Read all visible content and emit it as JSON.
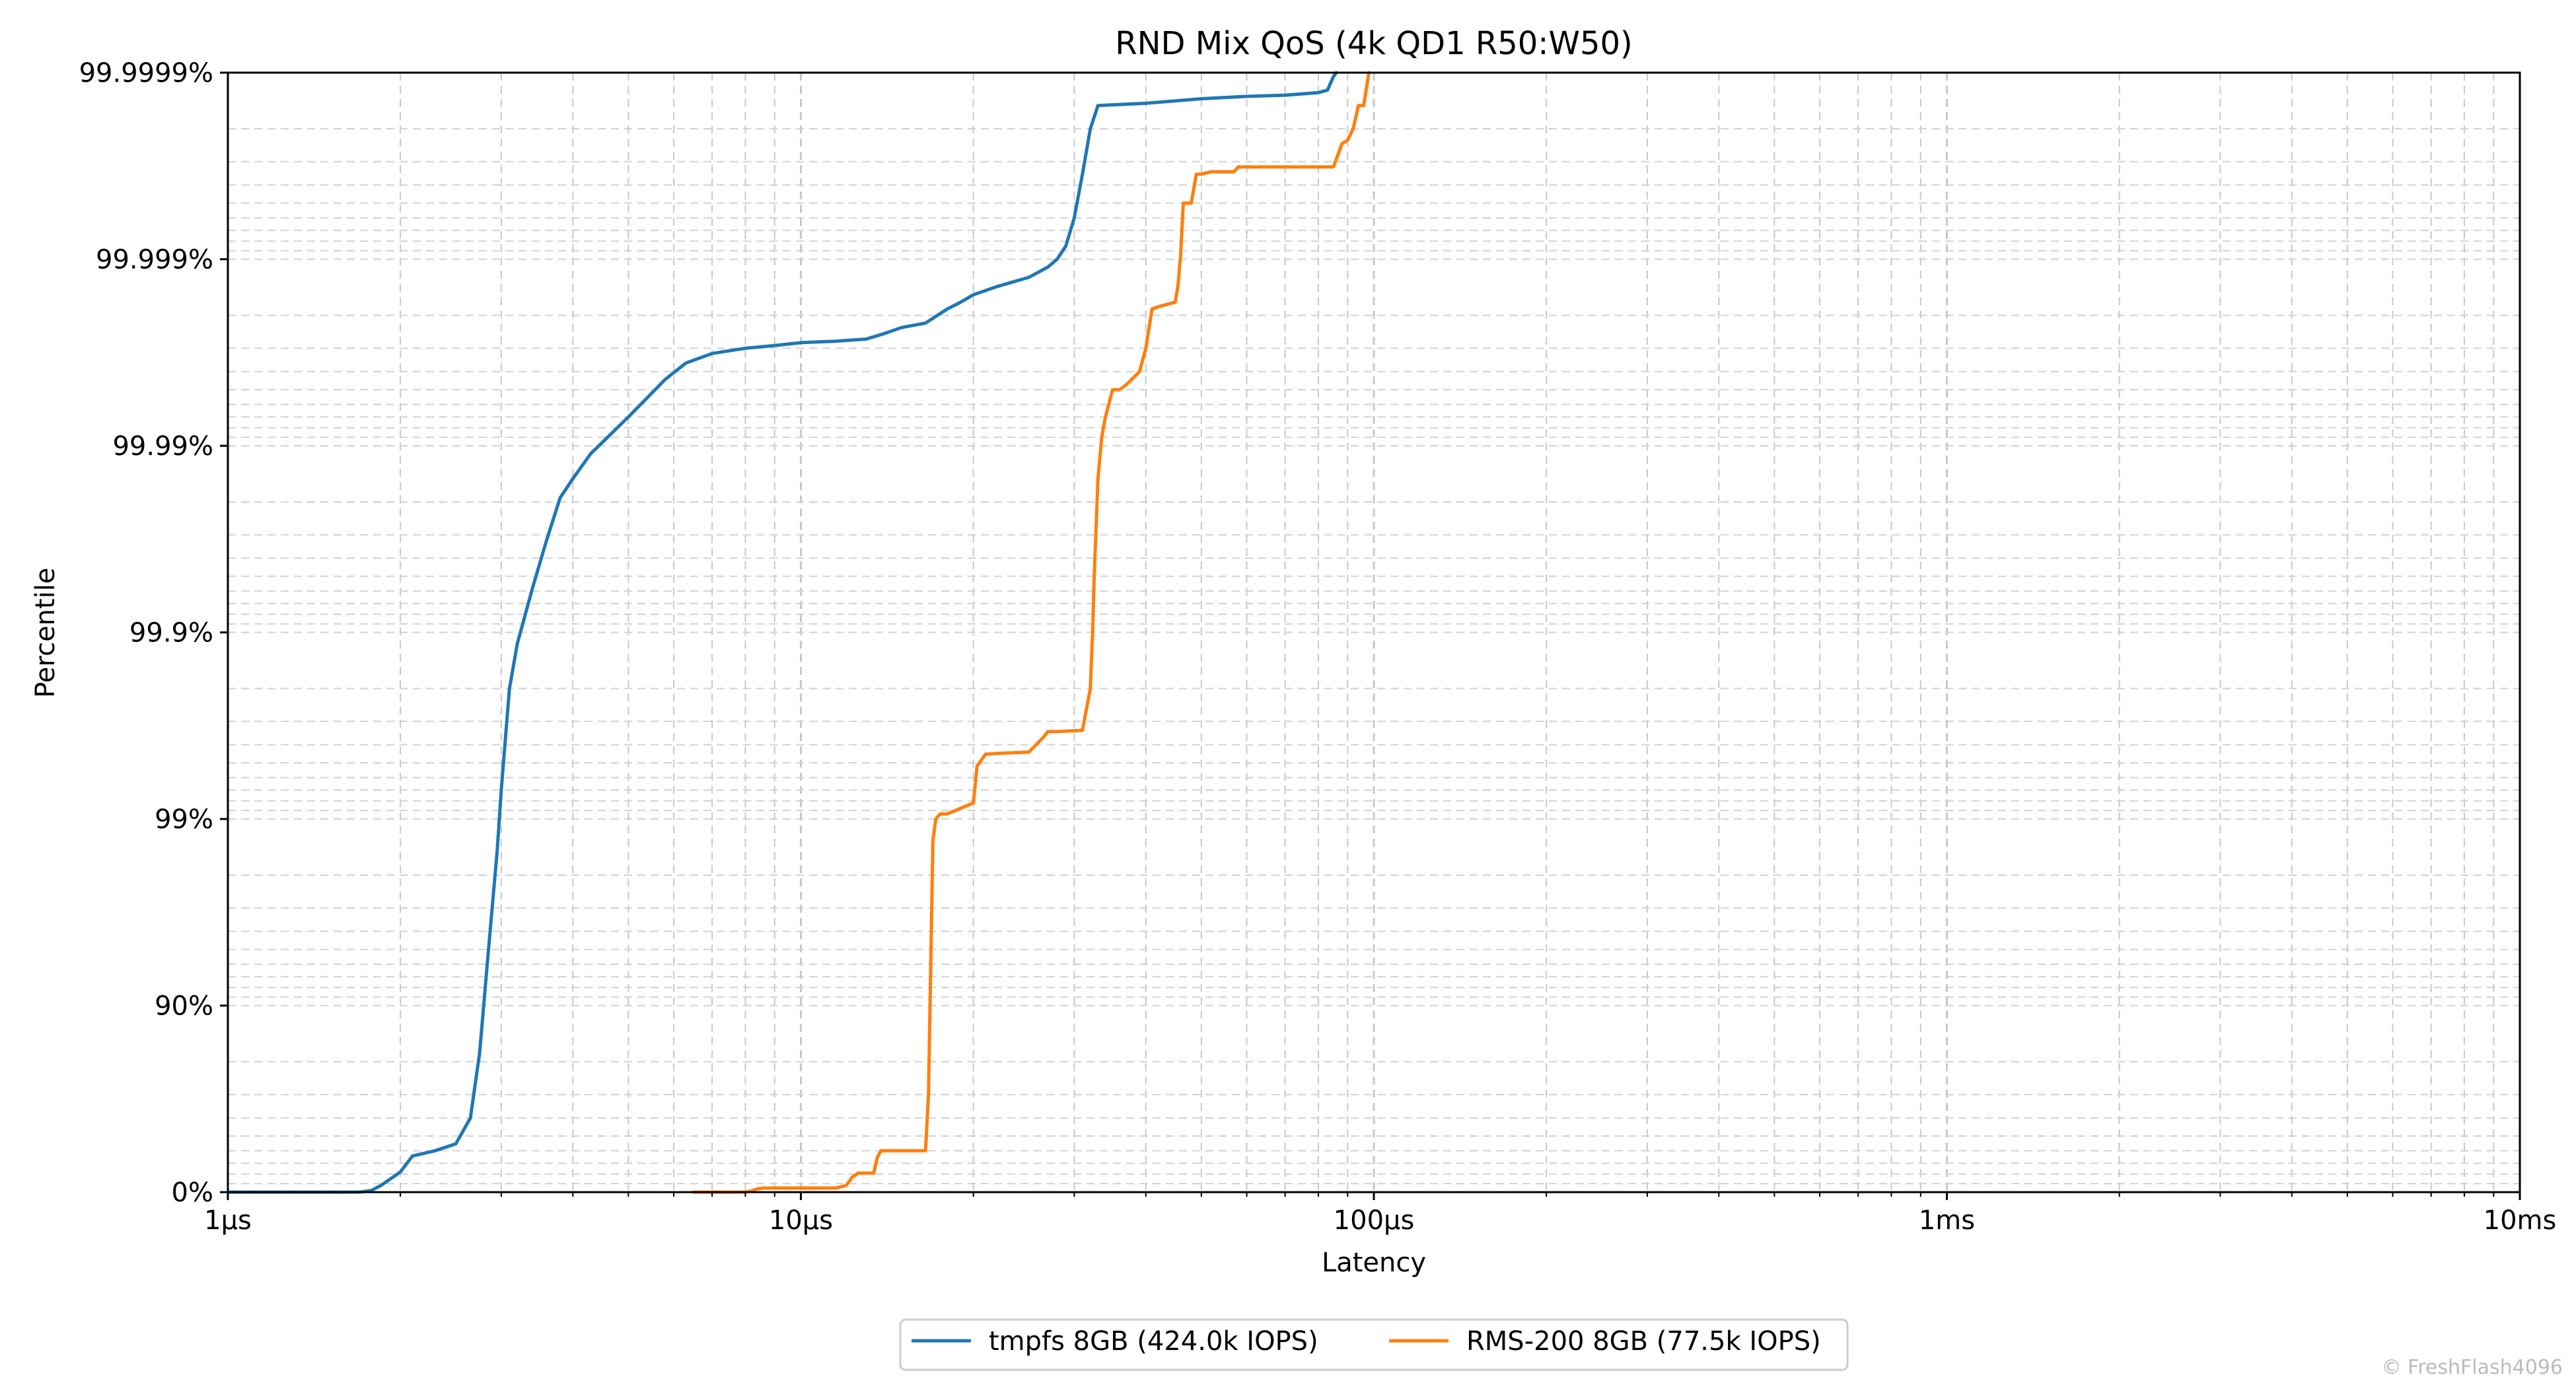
{
  "chart_data": {
    "type": "line",
    "title": "RND Mix QoS (4k QD1 R50:W50)",
    "xlabel": "Latency",
    "ylabel": "Percentile",
    "x_scale": "log",
    "y_scale": "percentile (log of 1/(1-p))",
    "xlim": [
      1,
      10000
    ],
    "x_unit": "µs",
    "x_ticks": [
      "1µs",
      "10µs",
      "100µs",
      "1ms",
      "10ms"
    ],
    "y_ticks": [
      "0%",
      "90%",
      "99%",
      "99.9%",
      "99.99%",
      "99.999%",
      "99.9999%"
    ],
    "grid": true,
    "legend_position": "bottom-center",
    "series": [
      {
        "name": "tmpfs 8GB (424.0k IOPS)",
        "color": "#1f77b4",
        "x": [
          1,
          1.5,
          1.7,
          1.78,
          1.85,
          2.0,
          2.1,
          2.3,
          2.5,
          2.65,
          2.75,
          2.85,
          2.95,
          3.0,
          3.1,
          3.2,
          3.4,
          3.6,
          3.8,
          4.0,
          4.3,
          4.6,
          5.0,
          5.4,
          5.8,
          6.3,
          7.0,
          8.0,
          9.0,
          10.0,
          11.5,
          13.0,
          14.0,
          15.0,
          16.5,
          18.0,
          19.0,
          20.0,
          22.0,
          25.0,
          27.0,
          28.0,
          29.0,
          30.0,
          31.0,
          32.0,
          33.0,
          35.0,
          40.0,
          50.0,
          60.0,
          70.0,
          80.0,
          83.0,
          85.0,
          86.0
        ],
        "percentile": [
          "0",
          "0.00001",
          "0.0005",
          "0.02",
          "0.08",
          "0.22",
          "0.36",
          "0.4",
          "0.45",
          "0.6",
          "0.82",
          "0.95",
          "0.985",
          "0.993",
          "0.998",
          "0.99885",
          "0.99942",
          "0.99968",
          "0.99981",
          "0.99985",
          "0.99989",
          "0.99991",
          "0.99993",
          "0.999945",
          "0.999956",
          "0.999964",
          "0.999968",
          "0.99997",
          "0.999971",
          "0.999972",
          "0.9999725",
          "0.9999732",
          "0.999975",
          "0.9999768",
          "0.999978",
          "0.9999815",
          "0.999983",
          "0.9999845",
          "0.999986",
          "0.9999875",
          "0.999989",
          "0.99999",
          "0.9999915",
          "0.999994",
          "0.9999965",
          "0.999998",
          "0.9999985",
          "0.999998512",
          "0.99999854",
          "0.99999862",
          "0.99999866",
          "0.99999868",
          "0.99999872",
          "0.99999876",
          "0.99999895",
          "0.999999"
        ]
      },
      {
        "name": "RMS-200 8GB (77.5k IOPS)",
        "color": "#ff7f0e",
        "x": [
          6.5,
          7.5,
          8.0,
          8.2,
          8.4,
          8.6,
          9.0,
          10.0,
          11.5,
          12.0,
          12.3,
          12.6,
          13.0,
          13.4,
          13.6,
          13.8,
          14.5,
          16.0,
          16.5,
          16.7,
          17.0,
          17.2,
          17.5,
          18.0,
          20.0,
          20.3,
          21.0,
          22.0,
          25.0,
          26.5,
          27.0,
          28.0,
          31.0,
          32.0,
          32.3,
          32.5,
          33.0,
          33.5,
          34.0,
          35.0,
          36.0,
          37.0,
          39.0,
          40.0,
          41.0,
          42.0,
          45.0,
          45.5,
          46.0,
          46.5,
          48.0,
          49.0,
          50.0,
          52.0,
          57.0,
          58.0,
          70.0,
          85.0,
          88.0,
          90.0,
          92.0,
          94.0,
          96.0,
          98.0
        ],
        "percentile": [
          "0",
          "0",
          "0.0001",
          "0.015",
          "0.04",
          "0.05",
          "0.05",
          "0.05",
          "0.05",
          "0.08",
          "0.17",
          "0.21",
          "0.21",
          "0.21",
          "0.35",
          "0.4",
          "0.4",
          "0.4",
          "0.4",
          "0.7",
          "0.987",
          "0.99",
          "0.9906",
          "0.9906",
          "0.9918",
          "0.9948",
          "0.9955",
          "0.99555",
          "0.99562",
          "0.99635",
          "0.9966",
          "0.9966",
          "0.99665",
          "0.998",
          "0.999",
          "0.9995",
          "0.99985",
          "0.99991",
          "0.99993",
          "0.99995",
          "0.99995",
          "0.999953",
          "0.99996",
          "0.99997",
          "0.9999815",
          "0.999982",
          "0.999983",
          "0.999986",
          "0.9999905",
          "0.999995",
          "0.999995",
          "0.9999965",
          "0.9999965",
          "0.9999966",
          "0.9999966",
          "0.9999968",
          "0.9999968",
          "0.9999968",
          "0.9999976",
          "0.9999977",
          "0.999998",
          "0.9999985",
          "0.9999985",
          "0.999999"
        ]
      }
    ]
  },
  "watermark": "© FreshFlash4096"
}
